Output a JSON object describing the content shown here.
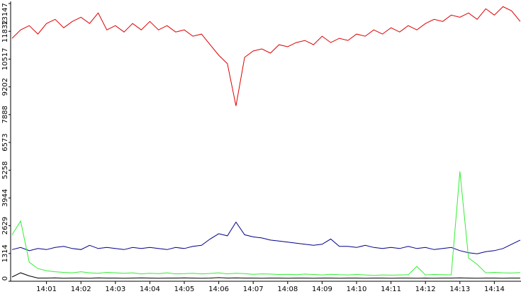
{
  "chart_data": {
    "type": "line",
    "categories": [
      null,
      null,
      null,
      null,
      "14:01",
      null,
      null,
      null,
      "14:02",
      null,
      null,
      null,
      "14:03",
      null,
      null,
      null,
      "14:04",
      null,
      null,
      null,
      "14:05",
      null,
      null,
      null,
      "14:06",
      null,
      null,
      null,
      "14:07",
      null,
      null,
      null,
      "14:08",
      null,
      null,
      null,
      "14:09",
      null,
      null,
      null,
      "14:10",
      null,
      null,
      null,
      "14:11",
      null,
      null,
      null,
      "14:12",
      null,
      null,
      null,
      "14:13",
      null,
      null,
      null,
      "14:14",
      null,
      null,
      null
    ],
    "series": [
      {
        "color": "#dd0000",
        "values": [
          11500,
          11900,
          12100,
          11700,
          12200,
          12400,
          12000,
          12300,
          12500,
          12200,
          12700,
          11900,
          12100,
          11800,
          12200,
          11900,
          12300,
          11900,
          12100,
          11800,
          11900,
          11600,
          11700,
          11200,
          10700,
          10300,
          8300,
          10600,
          10900,
          11000,
          10800,
          11200,
          11100,
          11300,
          11400,
          11200,
          11600,
          11300,
          11500,
          11400,
          11700,
          11600,
          11900,
          11700,
          12000,
          11800,
          12100,
          11900,
          12200,
          12400,
          12300,
          12600,
          12500,
          12700,
          12400,
          12900,
          12600,
          13000,
          12800,
          12300
        ]
      },
      {
        "color": "#00008b",
        "values": [
          1500,
          1600,
          1450,
          1550,
          1500,
          1600,
          1650,
          1550,
          1500,
          1700,
          1550,
          1600,
          1550,
          1500,
          1600,
          1550,
          1600,
          1550,
          1500,
          1600,
          1550,
          1650,
          1700,
          2000,
          2250,
          2150,
          2800,
          2200,
          2100,
          2050,
          1950,
          1900,
          1850,
          1800,
          1750,
          1700,
          1750,
          2000,
          1650,
          1650,
          1600,
          1700,
          1600,
          1550,
          1600,
          1550,
          1650,
          1550,
          1600,
          1500,
          1550,
          1600,
          1450,
          1350,
          1300,
          1400,
          1450,
          1550,
          1750,
          1950
        ]
      },
      {
        "color": "#33ee33",
        "values": [
          2200,
          2850,
          900,
          600,
          500,
          450,
          420,
          400,
          450,
          400,
          380,
          420,
          400,
          380,
          400,
          350,
          380,
          360,
          400,
          350,
          360,
          380,
          350,
          370,
          400,
          350,
          380,
          360,
          330,
          350,
          340,
          320,
          330,
          310,
          340,
          320,
          300,
          330,
          310,
          300,
          320,
          300,
          280,
          300,
          290,
          300,
          310,
          700,
          300,
          320,
          310,
          300,
          5198,
          1100,
          800,
          400,
          420,
          400,
          390,
          410
        ]
      },
      {
        "color": "#000000",
        "values": [
          200,
          400,
          250,
          150,
          150,
          160,
          140,
          150,
          150,
          140,
          160,
          150,
          150,
          140,
          150,
          160,
          150,
          140,
          150,
          150,
          160,
          150,
          140,
          150,
          170,
          150,
          160,
          150,
          150,
          140,
          150,
          150,
          140,
          150,
          150,
          140,
          150,
          150,
          140,
          150,
          150,
          140,
          150,
          150,
          140,
          150,
          150,
          140,
          150,
          140,
          150,
          150,
          160,
          150,
          140,
          150,
          150,
          140,
          150,
          150
        ]
      }
    ],
    "ylim": [
      0,
      13147
    ],
    "yticks": [
      0,
      1314,
      2629,
      3944,
      5258,
      6573,
      7888,
      9202,
      10517,
      11832,
      13147
    ]
  }
}
